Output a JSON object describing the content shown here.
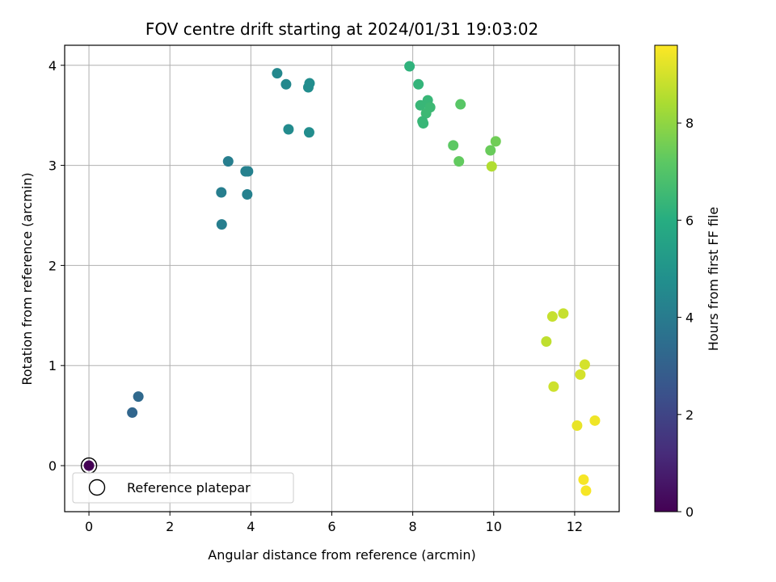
{
  "chart_data": {
    "type": "scatter",
    "title": "FOV centre drift starting at 2024/01/31 19:03:02",
    "xlabel": "Angular distance from reference (arcmin)",
    "ylabel": "Rotation from reference (arcmin)",
    "xlim": [
      -0.6,
      13.1
    ],
    "ylim": [
      -0.46,
      4.2
    ],
    "xticks": [
      0,
      2,
      4,
      6,
      8,
      10,
      12
    ],
    "yticks": [
      0,
      1,
      2,
      3,
      4
    ],
    "grid": true,
    "colormap": "viridis",
    "colorbar": {
      "label": "Hours from first FF file",
      "range": [
        0,
        9.6
      ],
      "ticks": [
        0,
        2,
        4,
        6,
        8
      ]
    },
    "legend": {
      "position": "lower-left",
      "entries": [
        "Reference platepar"
      ]
    },
    "reference_point": {
      "x": 0,
      "y": 0
    },
    "points": [
      {
        "x": 0.0,
        "y": 0.0,
        "c": 0.0
      },
      {
        "x": 1.07,
        "y": 0.53,
        "c": 3.2
      },
      {
        "x": 1.22,
        "y": 0.69,
        "c": 3.3
      },
      {
        "x": 3.28,
        "y": 2.41,
        "c": 4.1
      },
      {
        "x": 3.27,
        "y": 2.73,
        "c": 4.1
      },
      {
        "x": 3.44,
        "y": 3.04,
        "c": 4.1
      },
      {
        "x": 3.87,
        "y": 2.94,
        "c": 4.2
      },
      {
        "x": 3.93,
        "y": 2.94,
        "c": 4.2
      },
      {
        "x": 3.91,
        "y": 2.71,
        "c": 4.2
      },
      {
        "x": 4.65,
        "y": 3.92,
        "c": 4.5
      },
      {
        "x": 4.87,
        "y": 3.81,
        "c": 4.5
      },
      {
        "x": 4.93,
        "y": 3.36,
        "c": 4.6
      },
      {
        "x": 5.42,
        "y": 3.78,
        "c": 4.7
      },
      {
        "x": 5.45,
        "y": 3.82,
        "c": 4.7
      },
      {
        "x": 5.44,
        "y": 3.33,
        "c": 4.7
      },
      {
        "x": 7.92,
        "y": 3.99,
        "c": 6.2
      },
      {
        "x": 8.14,
        "y": 3.81,
        "c": 6.3
      },
      {
        "x": 8.19,
        "y": 3.6,
        "c": 6.4
      },
      {
        "x": 8.37,
        "y": 3.65,
        "c": 6.4
      },
      {
        "x": 8.43,
        "y": 3.58,
        "c": 6.5
      },
      {
        "x": 8.33,
        "y": 3.52,
        "c": 6.5
      },
      {
        "x": 8.24,
        "y": 3.44,
        "c": 6.4
      },
      {
        "x": 8.26,
        "y": 3.42,
        "c": 6.4
      },
      {
        "x": 9.18,
        "y": 3.61,
        "c": 7.1
      },
      {
        "x": 9.0,
        "y": 3.2,
        "c": 7.2
      },
      {
        "x": 9.14,
        "y": 3.04,
        "c": 7.3
      },
      {
        "x": 9.92,
        "y": 3.15,
        "c": 7.4
      },
      {
        "x": 10.05,
        "y": 3.24,
        "c": 7.5
      },
      {
        "x": 9.95,
        "y": 2.99,
        "c": 8.5
      },
      {
        "x": 11.3,
        "y": 1.24,
        "c": 8.7
      },
      {
        "x": 11.45,
        "y": 1.49,
        "c": 8.8
      },
      {
        "x": 11.72,
        "y": 1.52,
        "c": 8.8
      },
      {
        "x": 11.48,
        "y": 0.79,
        "c": 8.9
      },
      {
        "x": 12.14,
        "y": 0.91,
        "c": 9.0
      },
      {
        "x": 12.25,
        "y": 1.01,
        "c": 9.0
      },
      {
        "x": 12.06,
        "y": 0.4,
        "c": 9.3
      },
      {
        "x": 12.5,
        "y": 0.45,
        "c": 9.4
      },
      {
        "x": 12.22,
        "y": -0.14,
        "c": 9.5
      },
      {
        "x": 12.28,
        "y": -0.25,
        "c": 9.5
      }
    ]
  }
}
